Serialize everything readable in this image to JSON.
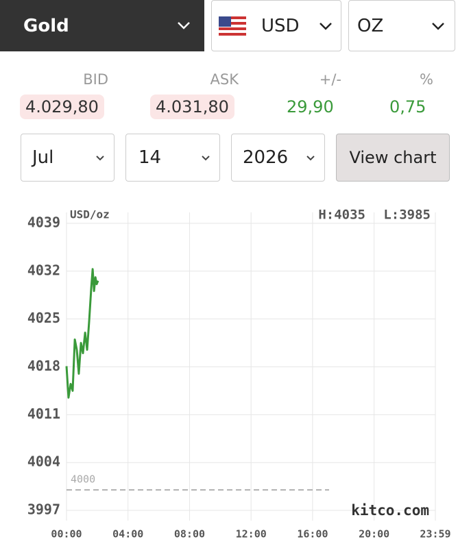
{
  "selector": {
    "metal": "Gold",
    "currency": "USD",
    "unit": "OZ"
  },
  "quote": {
    "labels": [
      "BID",
      "ASK",
      "+/-",
      "%"
    ],
    "values": [
      "4.029,80",
      "4.031,80",
      "29,90",
      "0,75"
    ]
  },
  "date": {
    "month": "Jul",
    "day": "14",
    "year": "2026",
    "button": "View chart"
  },
  "chart_data": {
    "type": "line",
    "unit_label": "USD/oz",
    "high_label": "H:4035",
    "low_label": "L:3985",
    "watermark": "kitco.com",
    "x": [
      0,
      0.13,
      0.27,
      0.4,
      0.54,
      0.67,
      0.8,
      0.94,
      1.07,
      1.21,
      1.34,
      1.47,
      1.61,
      1.7,
      1.79,
      1.88,
      1.96,
      2.05
    ],
    "series": [
      {
        "name": "Gold",
        "color": "#3a9a3a",
        "values": [
          4018.1,
          4013.5,
          4015.5,
          4014.5,
          4022,
          4020.5,
          4017,
          4021.5,
          4020,
          4023,
          4020.5,
          4024.6,
          4029.6,
          4032.3,
          4029.1,
          4031.1,
          4030.1,
          4030.6
        ]
      }
    ],
    "reference_line": 4000,
    "xlim": [
      0,
      23.983
    ],
    "xticks": [
      {
        "value": 0,
        "label": "00:00"
      },
      {
        "value": 4,
        "label": "04:00"
      },
      {
        "value": 8,
        "label": "08:00"
      },
      {
        "value": 12,
        "label": "12:00"
      },
      {
        "value": 16,
        "label": "16:00"
      },
      {
        "value": 20,
        "label": "20:00"
      },
      {
        "value": 23.983,
        "label": "23:59"
      }
    ],
    "ylim": [
      3995.5,
      4040.6
    ],
    "yticks": [
      3997,
      4004,
      4011,
      4018,
      4025,
      4032,
      4039
    ],
    "grid": true
  }
}
